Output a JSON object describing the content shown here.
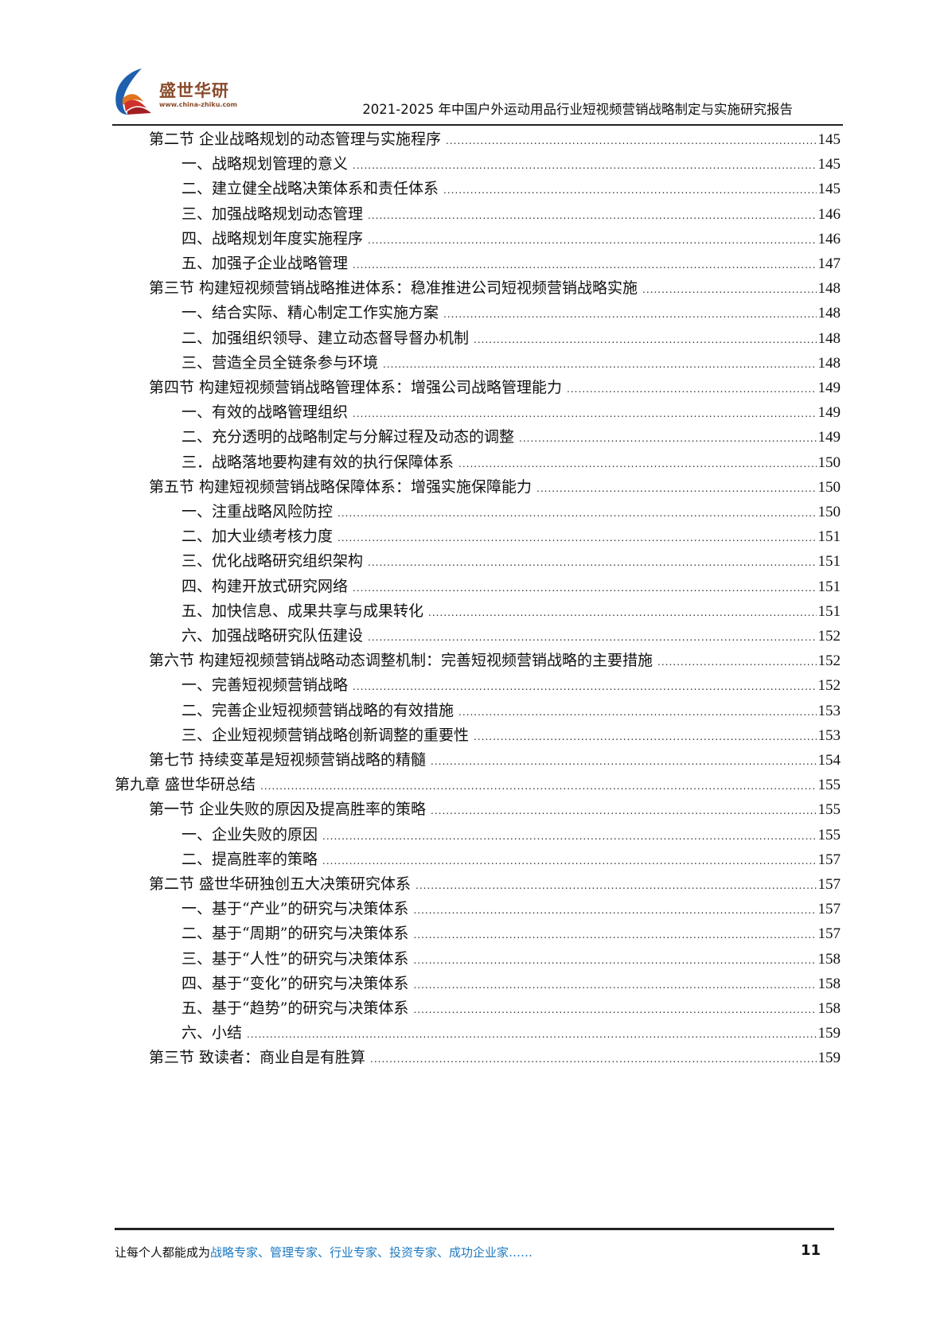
{
  "header": {
    "logo_text": "盛世华研",
    "logo_url": "www.china-zhiku.com",
    "title": "2021-2025 年中国户外运动用品行业短视频营销战略制定与实施研究报告"
  },
  "toc": [
    {
      "level": 1,
      "text": "第二节  企业战略规划的动态管理与实施程序",
      "page": "145"
    },
    {
      "level": 2,
      "text": "一、战略规划管理的意义",
      "page": "145"
    },
    {
      "level": 2,
      "text": "二、建立健全战略决策体系和责任体系",
      "page": "145"
    },
    {
      "level": 2,
      "text": "三、加强战略规划动态管理",
      "page": "146"
    },
    {
      "level": 2,
      "text": "四、战略规划年度实施程序",
      "page": "146"
    },
    {
      "level": 2,
      "text": "五、加强子企业战略管理",
      "page": "147"
    },
    {
      "level": 1,
      "text": "第三节  构建短视频营销战略推进体系：稳准推进公司短视频营销战略实施",
      "page": "148"
    },
    {
      "level": 2,
      "text": "一、结合实际、精心制定工作实施方案",
      "page": "148"
    },
    {
      "level": 2,
      "text": "二、加强组织领导、建立动态督导督办机制",
      "page": "148"
    },
    {
      "level": 2,
      "text": "三、营造全员全链条参与环境",
      "page": "148"
    },
    {
      "level": 1,
      "text": "第四节  构建短视频营销战略管理体系：增强公司战略管理能力",
      "page": "149"
    },
    {
      "level": 2,
      "text": "一、有效的战略管理组织",
      "page": "149"
    },
    {
      "level": 2,
      "text": "二、充分透明的战略制定与分解过程及动态的调整",
      "page": "149"
    },
    {
      "level": 2,
      "text": "三．战略落地要构建有效的执行保障体系",
      "page": "150"
    },
    {
      "level": 1,
      "text": "第五节  构建短视频营销战略保障体系：增强实施保障能力",
      "page": "150"
    },
    {
      "level": 2,
      "text": "一、注重战略风险防控",
      "page": "150"
    },
    {
      "level": 2,
      "text": "二、加大业绩考核力度",
      "page": "151"
    },
    {
      "level": 2,
      "text": "三、优化战略研究组织架构",
      "page": "151"
    },
    {
      "level": 2,
      "text": "四、构建开放式研究网络",
      "page": "151"
    },
    {
      "level": 2,
      "text": "五、加快信息、成果共享与成果转化",
      "page": "151"
    },
    {
      "level": 2,
      "text": "六、加强战略研究队伍建设",
      "page": "152"
    },
    {
      "level": 1,
      "text": "第六节  构建短视频营销战略动态调整机制：完善短视频营销战略的主要措施",
      "page": "152"
    },
    {
      "level": 2,
      "text": "一、完善短视频营销战略",
      "page": "152"
    },
    {
      "level": 2,
      "text": "二、完善企业短视频营销战略的有效措施",
      "page": "153"
    },
    {
      "level": 2,
      "text": "三、企业短视频营销战略创新调整的重要性",
      "page": "153"
    },
    {
      "level": 1,
      "text": "第七节  持续变革是短视频营销战略的精髓",
      "page": "154"
    },
    {
      "level": 0,
      "text": "第九章  盛世华研总结",
      "page": "155"
    },
    {
      "level": 1,
      "text": "第一节  企业失败的原因及提高胜率的策略",
      "page": "155"
    },
    {
      "level": 2,
      "text": "一、企业失败的原因",
      "page": "155"
    },
    {
      "level": 2,
      "text": "二、提高胜率的策略",
      "page": "157"
    },
    {
      "level": 1,
      "text": "第二节  盛世华研独创五大决策研究体系",
      "page": "157"
    },
    {
      "level": 2,
      "text": "一、基于“产业”的研究与决策体系",
      "page": "157"
    },
    {
      "level": 2,
      "text": "二、基于“周期”的研究与决策体系",
      "page": "157"
    },
    {
      "level": 2,
      "text": "三、基于“人性”的研究与决策体系",
      "page": "158"
    },
    {
      "level": 2,
      "text": "四、基于“变化”的研究与决策体系",
      "page": "158"
    },
    {
      "level": 2,
      "text": "五、基于“趋势”的研究与决策体系",
      "page": "158"
    },
    {
      "level": 2,
      "text": "六、小结",
      "page": "159"
    },
    {
      "level": 1,
      "text": "第三节  致读者：商业自是有胜算",
      "page": "159"
    }
  ],
  "footer": {
    "slogan_prefix": "让每个人都能成为",
    "slogan_highlight": "战略专家、管理专家、行业专家、投资专家、成功企业家……",
    "page_number": "11"
  },
  "colors": {
    "highlight": "#1e7ac2",
    "logo_brown": "#8a4b2a",
    "logo_blue": "#1f5fae",
    "logo_red": "#d0312d"
  }
}
